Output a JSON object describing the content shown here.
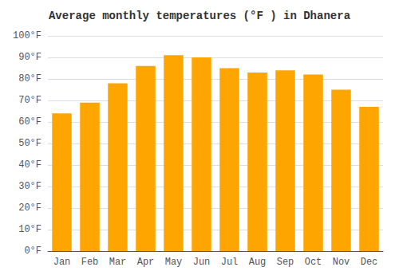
{
  "chart_data": {
    "type": "bar",
    "title": "Average monthly temperatures (°F ) in Dhanera",
    "categories": [
      "Jan",
      "Feb",
      "Mar",
      "Apr",
      "May",
      "Jun",
      "Jul",
      "Aug",
      "Sep",
      "Oct",
      "Nov",
      "Dec"
    ],
    "values": [
      64,
      69,
      78,
      86,
      91,
      90,
      85,
      83,
      84,
      82,
      75,
      67
    ],
    "color": "#FFA500",
    "ylim": [
      0,
      100
    ],
    "yticks": [
      {
        "value": 0,
        "label": "0°F"
      },
      {
        "value": 10,
        "label": "10°F"
      },
      {
        "value": 20,
        "label": "20°F"
      },
      {
        "value": 30,
        "label": "30°F"
      },
      {
        "value": 40,
        "label": "40°F"
      },
      {
        "value": 50,
        "label": "50°F"
      },
      {
        "value": 60,
        "label": "60°F"
      },
      {
        "value": 70,
        "label": "70°F"
      },
      {
        "value": 80,
        "label": "80°F"
      },
      {
        "value": 90,
        "label": "90°F"
      },
      {
        "value": 100,
        "label": "100°F"
      }
    ],
    "grid": true
  }
}
